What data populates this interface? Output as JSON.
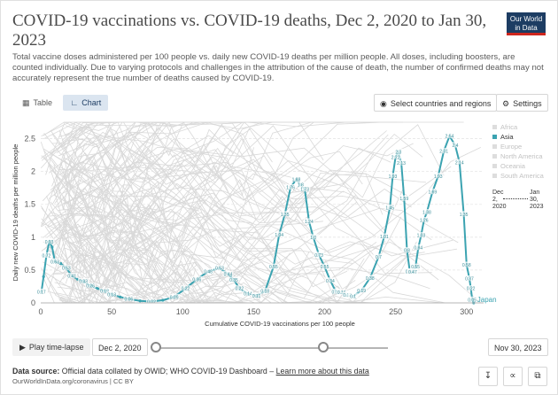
{
  "header": {
    "title": "COVID-19 vaccinations vs. COVID-19 deaths, Dec 2, 2020 to Jan 30, 2023",
    "subtitle": "Total vaccine doses administered per 100 people vs. daily new COVID-19 deaths per million people. All doses, including boosters, are counted individually. Due to varying protocols and challenges in the attribution of the cause of death, the number of confirmed deaths may not accurately represent the true number of deaths caused by COVID-19.",
    "logo_line1": "Our World",
    "logo_line2": "in Data"
  },
  "tabs": [
    {
      "label": "Table",
      "icon": "table-icon"
    },
    {
      "label": "Chart",
      "icon": "chart-icon",
      "active": true
    }
  ],
  "controls": {
    "select_label": "Select countries and regions",
    "settings_label": "Settings"
  },
  "legend": [
    {
      "label": "Africa",
      "active": false,
      "color": "#cccccc"
    },
    {
      "label": "Asia",
      "active": true,
      "color": "#3ba3b1"
    },
    {
      "label": "Europe",
      "active": false,
      "color": "#cccccc"
    },
    {
      "label": "North America",
      "active": false,
      "color": "#cccccc"
    },
    {
      "label": "Oceania",
      "active": false,
      "color": "#cccccc"
    },
    {
      "label": "South America",
      "active": false,
      "color": "#cccccc"
    }
  ],
  "time_legend": {
    "start": "Dec 2, 2020",
    "end": "Jan 2023",
    "start_l1": "Dec",
    "start_l2": "2,",
    "start_l3": "2020",
    "end_l1": "Jan",
    "end_l2": "30,",
    "end_l3": "2023"
  },
  "timeline": {
    "play_label": "Play time-lapse",
    "start_date": "Dec 2, 2020",
    "end_date": "Nov 30, 2023",
    "handle_start": 0,
    "handle_end": 0.723
  },
  "footer": {
    "source_label": "Data source:",
    "source_text": "Official data collated by OWID; WHO COVID-19 Dashboard –",
    "learn_more": "Learn more about this data",
    "cite": "OurWorldInData.org/coronavirus | CC BY"
  },
  "colors": {
    "accent": "#3ba3b1",
    "background_lines": "#d4d4d4",
    "brand": "#1d3d63",
    "brand_red": "#ce261e"
  },
  "chart_data": {
    "type": "scatter",
    "xlabel": "Cumulative COVID-19 vaccinations per 100 people",
    "ylabel": "Daily new COVID-19 deaths per million people",
    "xlim": [
      0,
      312
    ],
    "ylim": [
      0,
      2.75
    ],
    "x_ticks": [
      0,
      50,
      100,
      150,
      200,
      250,
      300
    ],
    "y_ticks": [
      0,
      0.5,
      1,
      1.5,
      2,
      2.5
    ],
    "y_tick_labels": [
      "0",
      "0.5",
      "1",
      "1.5",
      "2",
      "2.5"
    ],
    "series": [
      {
        "name": "Japan",
        "color": "#3ba3b1",
        "x": [
          0.5,
          2,
          4,
          6,
          8,
          10,
          14,
          18,
          22,
          26,
          30,
          35,
          40,
          45,
          50,
          56,
          62,
          70,
          78,
          86,
          94,
          102,
          110,
          118,
          126,
          132,
          136,
          140,
          146,
          152,
          158,
          164,
          168,
          172,
          176,
          180,
          183,
          186,
          189,
          192,
          196,
          200,
          204,
          208,
          212,
          216,
          220,
          226,
          232,
          238,
          242,
          246,
          248,
          250,
          252,
          254,
          256,
          258,
          260,
          262,
          264,
          266,
          268,
          270,
          272,
          276,
          280,
          284,
          288,
          292,
          295,
          298,
          300,
          302,
          303,
          304,
          305
        ],
        "y": [
          0.17,
          0.4,
          0.72,
          0.93,
          0.85,
          0.63,
          0.6,
          0.53,
          0.41,
          0.36,
          0.33,
          0.26,
          0.22,
          0.18,
          0.13,
          0.09,
          0.06,
          0.03,
          0.02,
          0.04,
          0.09,
          0.22,
          0.36,
          0.48,
          0.53,
          0.44,
          0.35,
          0.22,
          0.14,
          0.11,
          0.18,
          0.55,
          1.04,
          1.35,
          1.76,
          1.88,
          1.8,
          1.73,
          1.24,
          1.0,
          0.73,
          0.55,
          0.34,
          0.17,
          0.16,
          0.12,
          0.1,
          0.19,
          0.38,
          0.7,
          1.01,
          1.45,
          1.93,
          2.22,
          2.3,
          2.13,
          1.59,
          0.8,
          0.48,
          0.47,
          0.55,
          0.84,
          1.03,
          1.26,
          1.38,
          1.69,
          1.93,
          2.31,
          2.54,
          2.4,
          2.14,
          1.35,
          0.58,
          0.37,
          0.22,
          0.05,
          0.0
        ],
        "point_labels": [
          "0.17",
          "",
          "0.72",
          "0.93",
          "",
          "0.63",
          "",
          "0.53",
          "0.41",
          "",
          "0.33",
          "0.26",
          "",
          "0.18",
          "0.13",
          "",
          "0.06",
          "",
          "0.02",
          "",
          "0.09",
          "0.22",
          "0.36",
          "0.48",
          "0.53",
          "0.44",
          "0.35",
          "0.22",
          "0.14",
          "0.11",
          "0.18",
          "0.55",
          "1.04",
          "1.35",
          "1.76",
          "1.88",
          "1.8",
          "1.73",
          "1.24",
          "1.0",
          "0.73",
          "0.55",
          "0.34",
          "0.17",
          "0.16",
          "0.12",
          "0.1",
          "0.19",
          "0.38",
          "0.7",
          "1.01",
          "1.45",
          "1.93",
          "2.22",
          "2.3",
          "2.13",
          "1.59",
          "0.8",
          "0.48",
          "0.47",
          "0.55",
          "0.84",
          "1.03",
          "1.26",
          "1.38",
          "1.69",
          "1.93",
          "2.31",
          "2.54",
          "2.4",
          "2.14",
          "1.35",
          "0.58",
          "0.37",
          "0.22",
          "0.05",
          ""
        ]
      }
    ],
    "background_lines": "other countries (greyed out)",
    "end_label": "Japan"
  }
}
